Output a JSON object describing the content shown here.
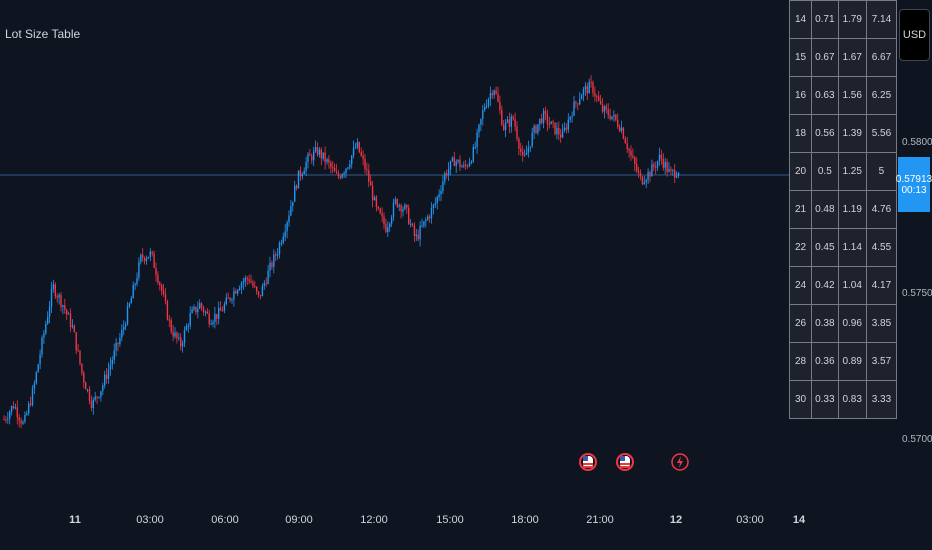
{
  "indicator": {
    "title": "Lot Size Table"
  },
  "currency_button": {
    "label": "USD"
  },
  "price_scale": {
    "labels": [
      "0.58000",
      "0.57500",
      "0.57000"
    ],
    "last_price": "0.57913",
    "countdown": "00:13",
    "last_price_color": "#2196f3"
  },
  "time_axis": {
    "labels": [
      "11",
      "03:00",
      "06:00",
      "09:00",
      "12:00",
      "15:00",
      "18:00",
      "21:00",
      "12",
      "03:00",
      "14"
    ]
  },
  "lot_table": {
    "rows": [
      [
        "14",
        "0.71",
        "1.79",
        "7.14"
      ],
      [
        "15",
        "0.67",
        "1.67",
        "6.67"
      ],
      [
        "16",
        "0.63",
        "1.56",
        "6.25"
      ],
      [
        "18",
        "0.56",
        "1.39",
        "5.56"
      ],
      [
        "20",
        "0.5",
        "1.25",
        "5"
      ],
      [
        "21",
        "0.48",
        "1.19",
        "4.76"
      ],
      [
        "22",
        "0.45",
        "1.14",
        "4.55"
      ],
      [
        "24",
        "0.42",
        "1.04",
        "4.17"
      ],
      [
        "26",
        "0.38",
        "0.96",
        "3.85"
      ],
      [
        "28",
        "0.36",
        "0.89",
        "3.57"
      ],
      [
        "30",
        "0.33",
        "0.83",
        "3.33"
      ]
    ]
  },
  "events": [
    {
      "icon": "us-flag-icon"
    },
    {
      "icon": "us-flag-icon"
    },
    {
      "icon": "lightning-icon"
    }
  ],
  "colors": {
    "up": "#2196f3",
    "down": "#f23645",
    "background": "#0e1420",
    "price_line": "#2f5d8a"
  },
  "chart_data": {
    "type": "candlestick",
    "series": [
      {
        "values": [
          0.5707,
          0.5712,
          0.5705,
          0.5717,
          0.5735,
          0.5752,
          0.5746,
          0.5738,
          0.5722,
          0.5712,
          0.5718,
          0.5727,
          0.5736,
          0.5748,
          0.5762,
          0.5763,
          0.5752,
          0.5738,
          0.5732,
          0.5742,
          0.5746,
          0.5741,
          0.5743,
          0.5748,
          0.5753,
          0.5755,
          0.5748,
          0.5757,
          0.5765,
          0.5776,
          0.5789,
          0.5795,
          0.5798,
          0.5794,
          0.5789,
          0.5793,
          0.58,
          0.5791,
          0.5778,
          0.5772,
          0.5781,
          0.5778,
          0.5768,
          0.5774,
          0.578,
          0.579,
          0.5795,
          0.5792,
          0.5798,
          0.5813,
          0.582,
          0.5806,
          0.5809,
          0.5794,
          0.5804,
          0.581,
          0.5806,
          0.5803,
          0.5812,
          0.5818,
          0.582,
          0.5812,
          0.581,
          0.5806,
          0.5796,
          0.5788,
          0.5791,
          0.5796,
          0.579,
          0.5792
        ]
      }
    ]
  }
}
